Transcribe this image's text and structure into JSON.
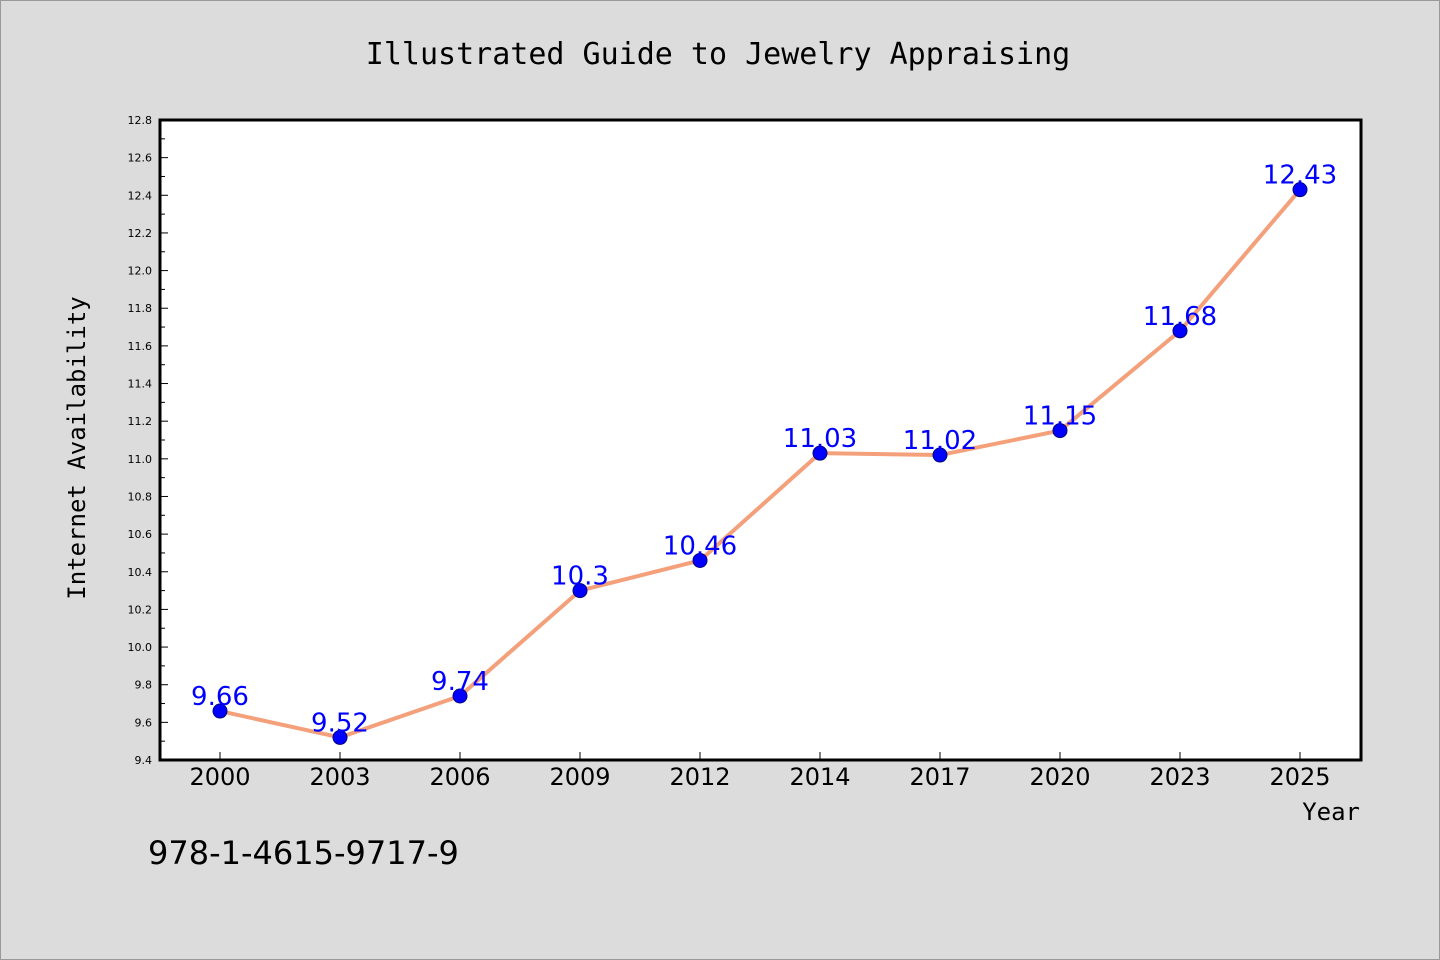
{
  "chart_data": {
    "type": "line",
    "title": "Illustrated Guide to Jewelry Appraising",
    "xlabel": "Year",
    "ylabel": "Internet Availability",
    "categories": [
      "2000",
      "2003",
      "2006",
      "2009",
      "2012",
      "2014",
      "2017",
      "2020",
      "2023",
      "2025"
    ],
    "series": [
      {
        "values": [
          9.66,
          9.52,
          9.74,
          10.3,
          10.46,
          11.03,
          11.02,
          11.15,
          11.68,
          12.43
        ]
      }
    ],
    "data_labels": [
      "9.66",
      "9.52",
      "9.74",
      "10.3",
      "10.46",
      "11.03",
      "11.02",
      "11.15",
      "11.68",
      "12.43"
    ],
    "ylim": [
      9.4,
      12.8
    ],
    "yticks": [
      "9.4",
      "9.6",
      "9.8",
      "10.0",
      "10.2",
      "10.4",
      "10.6",
      "10.8",
      "11.0",
      "11.2",
      "11.4",
      "11.6",
      "11.8",
      "12.0",
      "12.2",
      "12.4",
      "12.6",
      "12.8"
    ],
    "grid": false,
    "legend": "none",
    "colors": {
      "line": "#f4a07a",
      "marker_fill": "#0000ff",
      "marker_edge": "#000080",
      "data_label": "#0000ff",
      "plot_background": "#ffffff",
      "figure_background": "#dcdcdc"
    }
  },
  "footer": {
    "isbn": "978-1-4615-9717-9"
  }
}
